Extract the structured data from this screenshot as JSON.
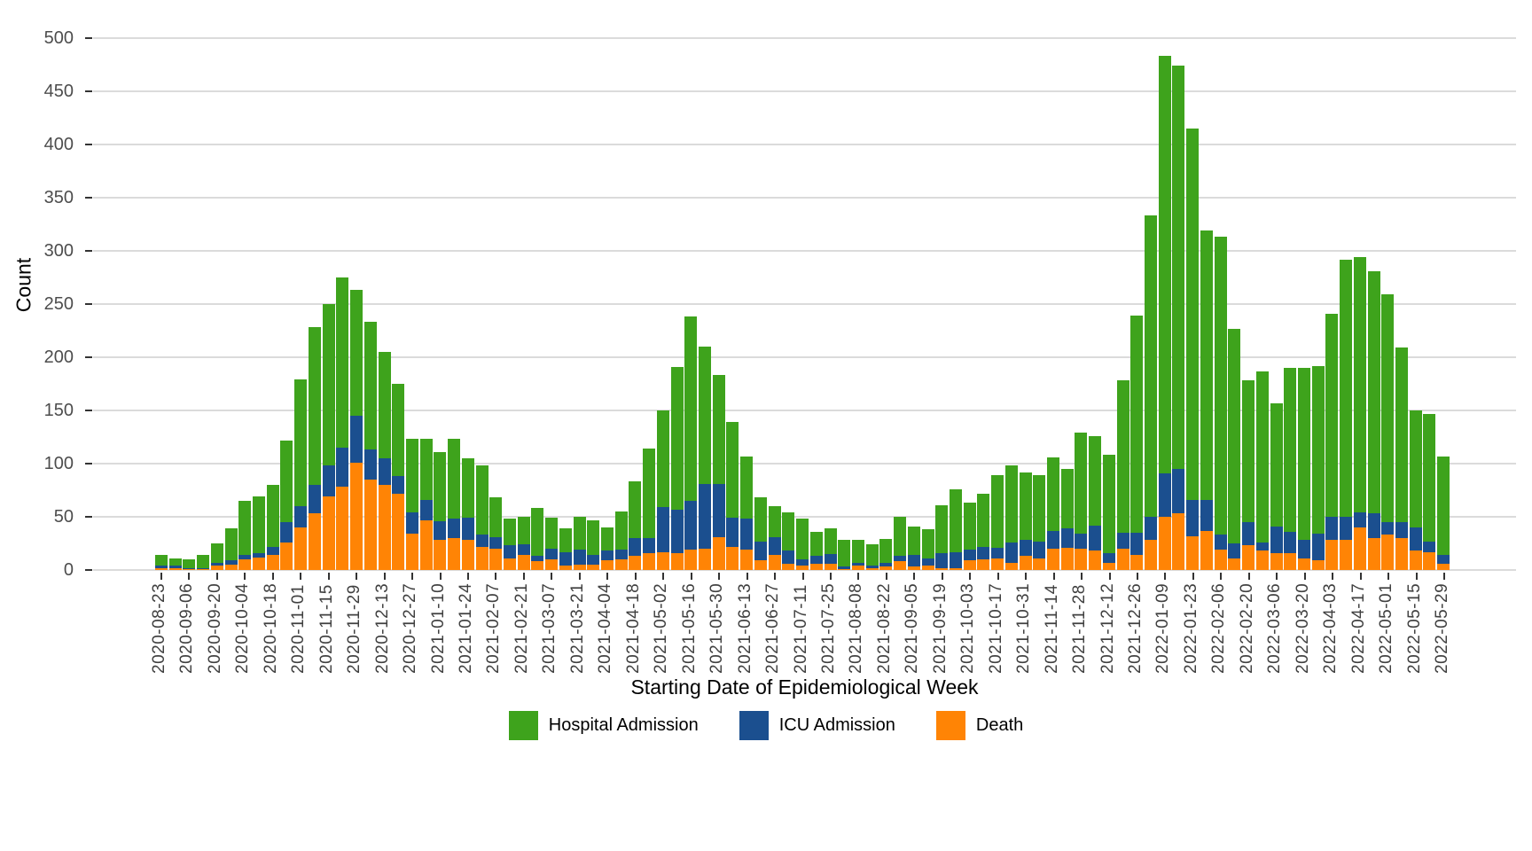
{
  "chart_data": {
    "type": "bar",
    "stacked": true,
    "xlabel": "Starting Date of Epidemiological Week",
    "ylabel": "Count",
    "ylim": [
      0,
      500
    ],
    "y_ticks": [
      0,
      50,
      100,
      150,
      200,
      250,
      300,
      350,
      400,
      450,
      500
    ],
    "grid": "horizontal major gridlines only",
    "legend_position": "bottom",
    "bar_unit": "weekly epidemiological week",
    "categories": [
      "2020-08-23",
      "2020-08-30",
      "2020-09-06",
      "2020-09-13",
      "2020-09-20",
      "2020-09-27",
      "2020-10-04",
      "2020-10-11",
      "2020-10-18",
      "2020-10-25",
      "2020-11-01",
      "2020-11-08",
      "2020-11-15",
      "2020-11-22",
      "2020-11-29",
      "2020-12-06",
      "2020-12-13",
      "2020-12-20",
      "2020-12-27",
      "2021-01-03",
      "2021-01-10",
      "2021-01-17",
      "2021-01-24",
      "2021-01-31",
      "2021-02-07",
      "2021-02-14",
      "2021-02-21",
      "2021-02-28",
      "2021-03-07",
      "2021-03-14",
      "2021-03-21",
      "2021-03-28",
      "2021-04-04",
      "2021-04-11",
      "2021-04-18",
      "2021-04-25",
      "2021-05-02",
      "2021-05-09",
      "2021-05-16",
      "2021-05-23",
      "2021-05-30",
      "2021-06-06",
      "2021-06-13",
      "2021-06-20",
      "2021-06-27",
      "2021-07-04",
      "2021-07-11",
      "2021-07-18",
      "2021-07-25",
      "2021-08-01",
      "2021-08-08",
      "2021-08-15",
      "2021-08-22",
      "2021-08-29",
      "2021-09-05",
      "2021-09-12",
      "2021-09-19",
      "2021-09-26",
      "2021-10-03",
      "2021-10-10",
      "2021-10-17",
      "2021-10-24",
      "2021-10-31",
      "2021-11-07",
      "2021-11-14",
      "2021-11-21",
      "2021-11-28",
      "2021-12-05",
      "2021-12-12",
      "2021-12-19",
      "2021-12-26",
      "2022-01-02",
      "2022-01-09",
      "2022-01-16",
      "2022-01-23",
      "2022-01-30",
      "2022-02-06",
      "2022-02-13",
      "2022-02-20",
      "2022-02-27",
      "2022-03-06",
      "2022-03-13",
      "2022-03-20",
      "2022-03-27",
      "2022-04-03",
      "2022-04-10",
      "2022-04-17",
      "2022-04-24",
      "2022-05-01",
      "2022-05-08",
      "2022-05-15",
      "2022-05-22",
      "2022-05-29"
    ],
    "x_tick_every": 2,
    "x_tick_labels": [
      "2020-08-23",
      "2020-09-06",
      "2020-09-20",
      "2020-10-04",
      "2020-10-18",
      "2020-11-01",
      "2020-11-15",
      "2020-11-29",
      "2020-12-13",
      "2020-12-27",
      "2021-01-10",
      "2021-01-24",
      "2021-02-07",
      "2021-02-21",
      "2021-03-07",
      "2021-03-21",
      "2021-04-04",
      "2021-04-18",
      "2021-05-02",
      "2021-05-16",
      "2021-05-30",
      "2021-06-13",
      "2021-06-27",
      "2021-07-11",
      "2021-07-25",
      "2021-08-08",
      "2021-08-22",
      "2021-09-05",
      "2021-09-19",
      "2021-10-03",
      "2021-10-17",
      "2021-10-31",
      "2021-11-14",
      "2021-11-28",
      "2021-12-12",
      "2021-12-26",
      "2022-01-09",
      "2022-01-23",
      "2022-02-06",
      "2022-02-20",
      "2022-03-06",
      "2022-03-20",
      "2022-04-03",
      "2022-04-17",
      "2022-05-01",
      "2022-05-15",
      "2022-05-29"
    ],
    "series": [
      {
        "name": "Death",
        "color": "#FF8405",
        "values": [
          2,
          2,
          1,
          1,
          4,
          5,
          10,
          12,
          14,
          26,
          40,
          53,
          69,
          78,
          101,
          85,
          80,
          72,
          34,
          47,
          28,
          30,
          28,
          22,
          20,
          11,
          14,
          8,
          10,
          4,
          5,
          5,
          9,
          10,
          13,
          16,
          17,
          16,
          19,
          20,
          31,
          22,
          19,
          9,
          14,
          6,
          4,
          6,
          6,
          1,
          4,
          2,
          3,
          8,
          3,
          4,
          2,
          2,
          9,
          10,
          11,
          7,
          13,
          11,
          20,
          21,
          20,
          18,
          7,
          20,
          14,
          28,
          50,
          53,
          32,
          37,
          19,
          11,
          23,
          18,
          16,
          16,
          11,
          9,
          28,
          28,
          40,
          30,
          33,
          30,
          18,
          17,
          6
        ]
      },
      {
        "name": "ICU Admission",
        "color": "#1B4F8F",
        "values": [
          2,
          2,
          1,
          1,
          3,
          4,
          4,
          4,
          8,
          19,
          20,
          27,
          29,
          37,
          44,
          28,
          25,
          16,
          20,
          19,
          18,
          18,
          21,
          11,
          11,
          12,
          10,
          5,
          10,
          13,
          14,
          9,
          9,
          9,
          17,
          14,
          42,
          41,
          46,
          61,
          50,
          27,
          29,
          18,
          17,
          12,
          6,
          7,
          9,
          2,
          3,
          2,
          4,
          5,
          11,
          7,
          14,
          15,
          10,
          12,
          10,
          19,
          15,
          16,
          17,
          18,
          14,
          24,
          9,
          15,
          21,
          22,
          41,
          42,
          34,
          29,
          14,
          14,
          22,
          8,
          25,
          20,
          17,
          25,
          22,
          22,
          14,
          23,
          12,
          15,
          22,
          10,
          8
        ]
      },
      {
        "name": "Hospital Admission",
        "color": "#3EA31C",
        "values": [
          10,
          7,
          8,
          12,
          18,
          30,
          51,
          53,
          58,
          77,
          119,
          148,
          152,
          160,
          118,
          120,
          100,
          87,
          69,
          57,
          65,
          75,
          56,
          65,
          37,
          25,
          26,
          45,
          29,
          22,
          31,
          33,
          22,
          36,
          53,
          84,
          91,
          134,
          173,
          129,
          102,
          90,
          59,
          41,
          29,
          36,
          38,
          23,
          24,
          25,
          21,
          20,
          22,
          37,
          27,
          27,
          45,
          59,
          44,
          50,
          68,
          72,
          64,
          62,
          69,
          56,
          95,
          84,
          92,
          143,
          204,
          283,
          392,
          379,
          349,
          253,
          280,
          202,
          133,
          161,
          116,
          154,
          162,
          158,
          191,
          242,
          240,
          228,
          214,
          164,
          110,
          120,
          93
        ]
      }
    ],
    "legend_order": [
      "Hospital Admission",
      "ICU Admission",
      "Death"
    ],
    "colors": {
      "hospital_admission": "#3EA31C",
      "icu_admission": "#1B4F8F",
      "death": "#FF8405",
      "gridline": "#dbdbdb",
      "axis_text": "#4d4d4d",
      "background": "#ffffff"
    }
  }
}
